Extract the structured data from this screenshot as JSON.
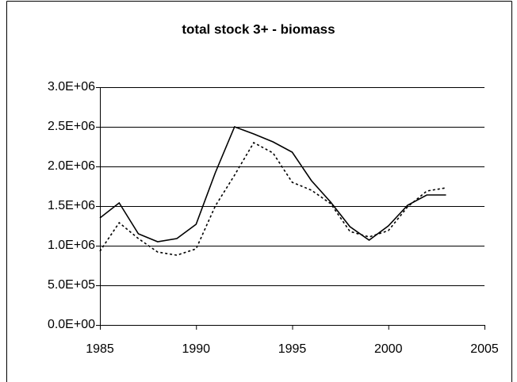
{
  "chart_data": {
    "type": "line",
    "title": "total stock 3+ - biomass",
    "x": [
      1985,
      1986,
      1987,
      1988,
      1989,
      1990,
      1991,
      1992,
      1993,
      1994,
      1995,
      1996,
      1997,
      1998,
      1999,
      2000,
      2001,
      2002,
      2003
    ],
    "series": [
      {
        "color": "#000000",
        "dash": "solid",
        "values": [
          1350000,
          1540000,
          1150000,
          1050000,
          1090000,
          1270000,
          1920000,
          2500000,
          2410000,
          2310000,
          2180000,
          1820000,
          1550000,
          1240000,
          1070000,
          1250000,
          1510000,
          1640000,
          1640000
        ]
      },
      {
        "color": "#000000",
        "dash": "dotted",
        "values": [
          930000,
          1290000,
          1090000,
          920000,
          880000,
          960000,
          1500000,
          1890000,
          2300000,
          2170000,
          1800000,
          1700000,
          1530000,
          1180000,
          1110000,
          1190000,
          1490000,
          1690000,
          1730000
        ]
      }
    ],
    "xlim": [
      1985,
      2005
    ],
    "xticks": [
      1985,
      1990,
      1995,
      2000,
      2005
    ],
    "ylim": [
      0,
      3000000
    ],
    "yticks": [
      {
        "value": 0,
        "label": "0.0E+00"
      },
      {
        "value": 500000,
        "label": "5.0E+05"
      },
      {
        "value": 1000000,
        "label": "1.0E+06"
      },
      {
        "value": 1500000,
        "label": "1.5E+06"
      },
      {
        "value": 2000000,
        "label": "2.0E+06"
      },
      {
        "value": 2500000,
        "label": "2.5E+06"
      },
      {
        "value": 3000000,
        "label": "3.0E+06"
      }
    ],
    "grid": true
  }
}
